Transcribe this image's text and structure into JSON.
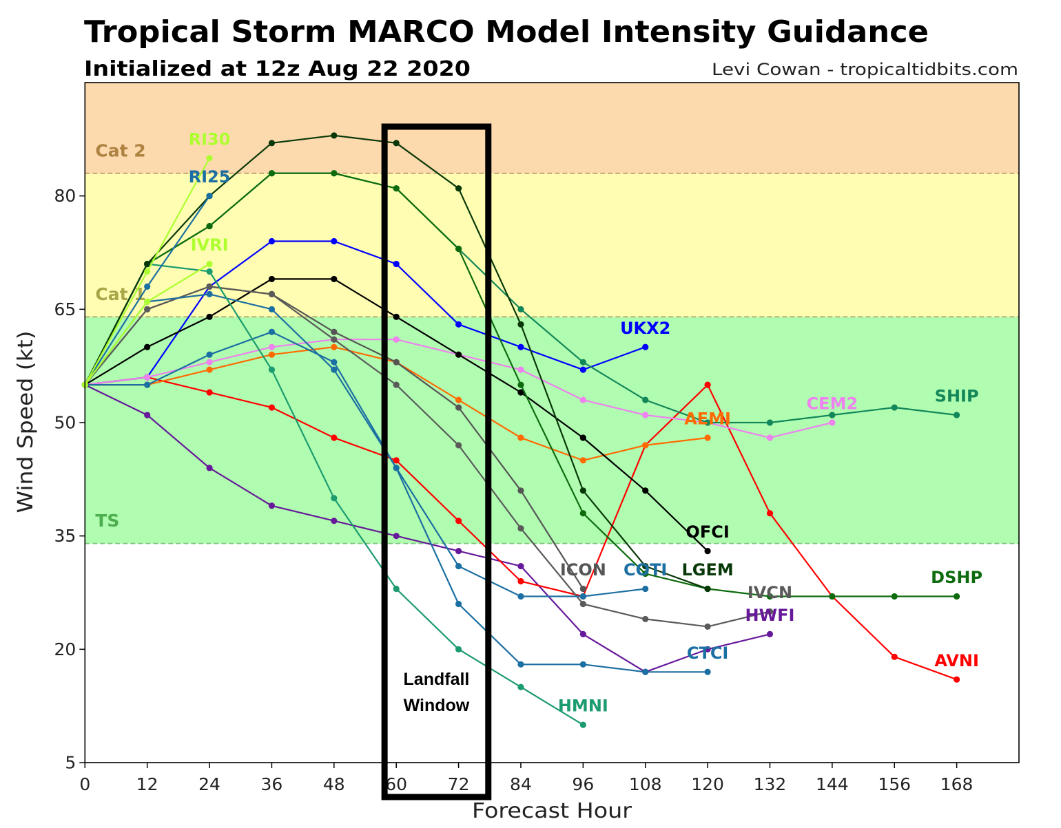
{
  "credit": "Levi Cowan - tropicaltidbits.com",
  "chart_data": {
    "type": "line",
    "title": "Tropical Storm MARCO Model Intensity Guidance",
    "subtitle": "Initialized at 12z Aug 22 2020",
    "xlabel": "Forecast Hour",
    "ylabel": "Wind Speed (kt)",
    "xlim": [
      0,
      180
    ],
    "ylim": [
      5,
      95
    ],
    "xticks": [
      0,
      12,
      24,
      36,
      48,
      60,
      72,
      84,
      96,
      108,
      120,
      132,
      144,
      156,
      168
    ],
    "yticks": [
      5,
      20,
      35,
      50,
      65,
      80
    ],
    "grid": false,
    "legend": "none (model names labeled at end of each line)",
    "plot_background": "#ffffff",
    "intensity_bands": [
      {
        "label": "TS",
        "min": 34,
        "max": 64,
        "fill": "#b0fcb0",
        "line_color": "#7cc47c",
        "label_color": "#4cae4c"
      },
      {
        "label": "Cat 1",
        "min": 64,
        "max": 83,
        "fill": "#fefdb2",
        "line_color": "#b4b06a",
        "label_color": "#a9a649"
      },
      {
        "label": "Cat 2",
        "min": 83,
        "max": 95,
        "fill": "#fddaae",
        "line_color": "#c09a6a",
        "label_color": "#ae8240"
      }
    ],
    "annotation": {
      "lines": [
        "Landfall",
        "Window"
      ],
      "x_range": [
        58,
        78
      ]
    },
    "series": [
      {
        "name": "HWFI",
        "color": "#66199a",
        "x": [
          0,
          12,
          24,
          36,
          48,
          60,
          72,
          84,
          96,
          108,
          120,
          132
        ],
        "y": [
          55,
          51,
          44,
          39,
          37,
          35,
          33,
          31,
          22,
          17,
          20,
          22
        ]
      },
      {
        "name": "AVNI",
        "color": "#ff0000",
        "x": [
          0,
          12,
          24,
          36,
          48,
          60,
          72,
          84,
          96,
          108,
          120,
          132,
          144,
          156,
          168
        ],
        "y": [
          55,
          56,
          54,
          52,
          48,
          45,
          37,
          29,
          27,
          47,
          55,
          38,
          27,
          19,
          16
        ]
      },
      {
        "name": "UKX2",
        "color": "#0000ff",
        "x": [
          0,
          12,
          24,
          36,
          48,
          60,
          72,
          84,
          96,
          108
        ],
        "y": [
          55,
          56,
          68,
          74,
          74,
          71,
          63,
          60,
          57,
          60
        ]
      },
      {
        "name": "CEM2",
        "color": "#ee82ee",
        "x": [
          0,
          12,
          24,
          36,
          48,
          60,
          72,
          84,
          96,
          108,
          120,
          132,
          144
        ],
        "y": [
          55,
          56,
          58,
          60,
          61,
          61,
          59,
          57,
          53,
          51,
          50,
          48,
          50
        ]
      },
      {
        "name": "AEMI",
        "color": "#ff6a00",
        "x": [
          0,
          12,
          24,
          36,
          48,
          60,
          72,
          84,
          96,
          108,
          120
        ],
        "y": [
          55,
          55,
          57,
          59,
          60,
          58,
          53,
          48,
          45,
          47,
          48
        ]
      },
      {
        "name": "OFCI",
        "color": "#000000",
        "x": [
          0,
          12,
          24,
          36,
          48,
          60,
          72,
          84,
          96,
          108,
          120
        ],
        "y": [
          55,
          60,
          64,
          69,
          69,
          64,
          59,
          54,
          48,
          41,
          33
        ]
      },
      {
        "name": "ICON",
        "color": "#555555",
        "x": [
          0,
          12,
          24,
          36,
          48,
          60,
          72,
          84,
          96
        ],
        "y": [
          55,
          65,
          68,
          67,
          62,
          58,
          52,
          41,
          28
        ]
      },
      {
        "name": "IVCN",
        "color": "#5a5a5a",
        "x": [
          0,
          12,
          24,
          36,
          48,
          60,
          72,
          84,
          96,
          108,
          120,
          132
        ],
        "y": [
          55,
          65,
          68,
          67,
          61,
          55,
          47,
          36,
          26,
          24,
          23,
          25
        ]
      },
      {
        "name": "COTI",
        "color": "#1b6fa2",
        "x": [
          0,
          12,
          24,
          36,
          48,
          60,
          72,
          84,
          96,
          108
        ],
        "y": [
          55,
          66,
          67,
          65,
          57,
          44,
          31,
          27,
          27,
          28
        ]
      },
      {
        "name": "CTCI",
        "color": "#1b6fa2",
        "x": [
          0,
          12,
          24,
          36,
          48,
          60,
          72,
          84,
          96,
          108,
          120
        ],
        "y": [
          55,
          55,
          59,
          62,
          58,
          44,
          26,
          18,
          18,
          17,
          17
        ]
      },
      {
        "name": "HMNI",
        "color": "#1b9b6f",
        "x": [
          0,
          12,
          24,
          36,
          48,
          60,
          72,
          84,
          96
        ],
        "y": [
          55,
          71,
          70,
          57,
          40,
          28,
          20,
          15,
          10
        ]
      },
      {
        "name": "SHIP",
        "color": "#128759",
        "x": [
          0,
          12,
          24,
          36,
          48,
          60,
          72,
          84,
          96,
          108,
          120,
          132,
          144,
          156,
          168
        ],
        "y": [
          55,
          71,
          76,
          83,
          83,
          81,
          73,
          65,
          58,
          53,
          50,
          50,
          51,
          52,
          51
        ]
      },
      {
        "name": "DSHP",
        "color": "#0d6b0d",
        "x": [
          0,
          12,
          24,
          36,
          48,
          60,
          72,
          84,
          96,
          108,
          120,
          132,
          144,
          156,
          168
        ],
        "y": [
          55,
          71,
          76,
          83,
          83,
          81,
          73,
          55,
          38,
          30,
          28,
          27,
          27,
          27,
          27
        ]
      },
      {
        "name": "LGEM",
        "color": "#083808",
        "x": [
          0,
          12,
          24,
          36,
          48,
          60,
          72,
          84,
          96,
          108,
          120
        ],
        "y": [
          55,
          71,
          80,
          87,
          88,
          87,
          81,
          63,
          41,
          31,
          28
        ]
      },
      {
        "name": "RI25",
        "color": "#1b6fa2",
        "x": [
          0,
          12,
          24
        ],
        "y": [
          55,
          68,
          80
        ]
      },
      {
        "name": "RI30",
        "color": "#adff2f",
        "x": [
          0,
          12,
          24
        ],
        "y": [
          55,
          70,
          85
        ]
      },
      {
        "name": "IVRI",
        "color": "#adff2f",
        "x": [
          0,
          12,
          24
        ],
        "y": [
          55,
          66,
          71
        ]
      }
    ]
  }
}
